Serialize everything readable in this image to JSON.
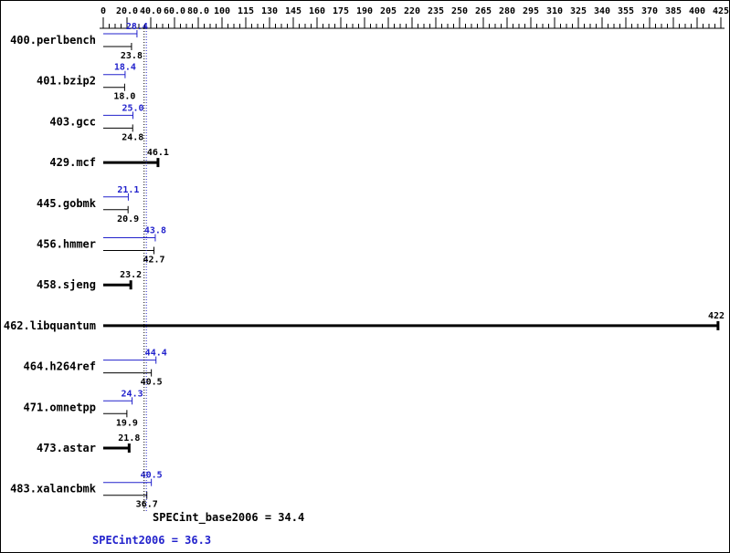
{
  "chart_data": {
    "type": "bar",
    "orientation": "horizontal",
    "title": "",
    "xlabel": "",
    "ylabel": "",
    "grid": false,
    "legend": "none",
    "axis_ticks": [
      "0",
      "20.0",
      "40.0",
      "60.0",
      "80.0",
      "100",
      "115",
      "130",
      "145",
      "160",
      "175",
      "190",
      "205",
      "220",
      "235",
      "250",
      "265",
      "280",
      "295",
      "310",
      "325",
      "340",
      "355",
      "370",
      "385",
      "400",
      "425"
    ],
    "axis_range": [
      0,
      425
    ],
    "colors": {
      "peak": "#2222cc",
      "base": "#000000"
    },
    "series_note": "blue bar = peak (SPECint2006), black bar = base (SPECint_base2006); single black bar rows show one reported value",
    "benchmarks": [
      {
        "name": "400.perlbench",
        "peak": 28.4,
        "peak_label": "28.4",
        "base": 23.8,
        "base_label": "23.8"
      },
      {
        "name": "401.bzip2",
        "peak": 18.4,
        "peak_label": "18.4",
        "base": 18.0,
        "base_label": "18.0"
      },
      {
        "name": "403.gcc",
        "peak": 25.0,
        "peak_label": "25.0",
        "base": 24.8,
        "base_label": "24.8"
      },
      {
        "name": "429.mcf",
        "peak": null,
        "base": 46.1,
        "base_label": "46.1"
      },
      {
        "name": "445.gobmk",
        "peak": 21.1,
        "peak_label": "21.1",
        "base": 20.9,
        "base_label": "20.9"
      },
      {
        "name": "456.hmmer",
        "peak": 43.8,
        "peak_label": "43.8",
        "base": 42.7,
        "base_label": "42.7"
      },
      {
        "name": "458.sjeng",
        "peak": null,
        "base": 23.2,
        "base_label": "23.2"
      },
      {
        "name": "462.libquantum",
        "peak": null,
        "base": 422,
        "base_label": "422"
      },
      {
        "name": "464.h264ref",
        "peak": 44.4,
        "peak_label": "44.4",
        "base": 40.5,
        "base_label": "40.5"
      },
      {
        "name": "471.omnetpp",
        "peak": 24.3,
        "peak_label": "24.3",
        "base": 19.9,
        "base_label": "19.9"
      },
      {
        "name": "473.astar",
        "peak": null,
        "base": 21.8,
        "base_label": "21.8"
      },
      {
        "name": "483.xalancbmk",
        "peak": 40.5,
        "peak_label": "40.5",
        "base": 36.7,
        "base_label": "36.7"
      }
    ],
    "summary": {
      "base_text": "SPECint_base2006 = 34.4",
      "base_value": 34.4,
      "peak_text": "SPECint2006 = 36.3",
      "peak_value": 36.3
    }
  }
}
